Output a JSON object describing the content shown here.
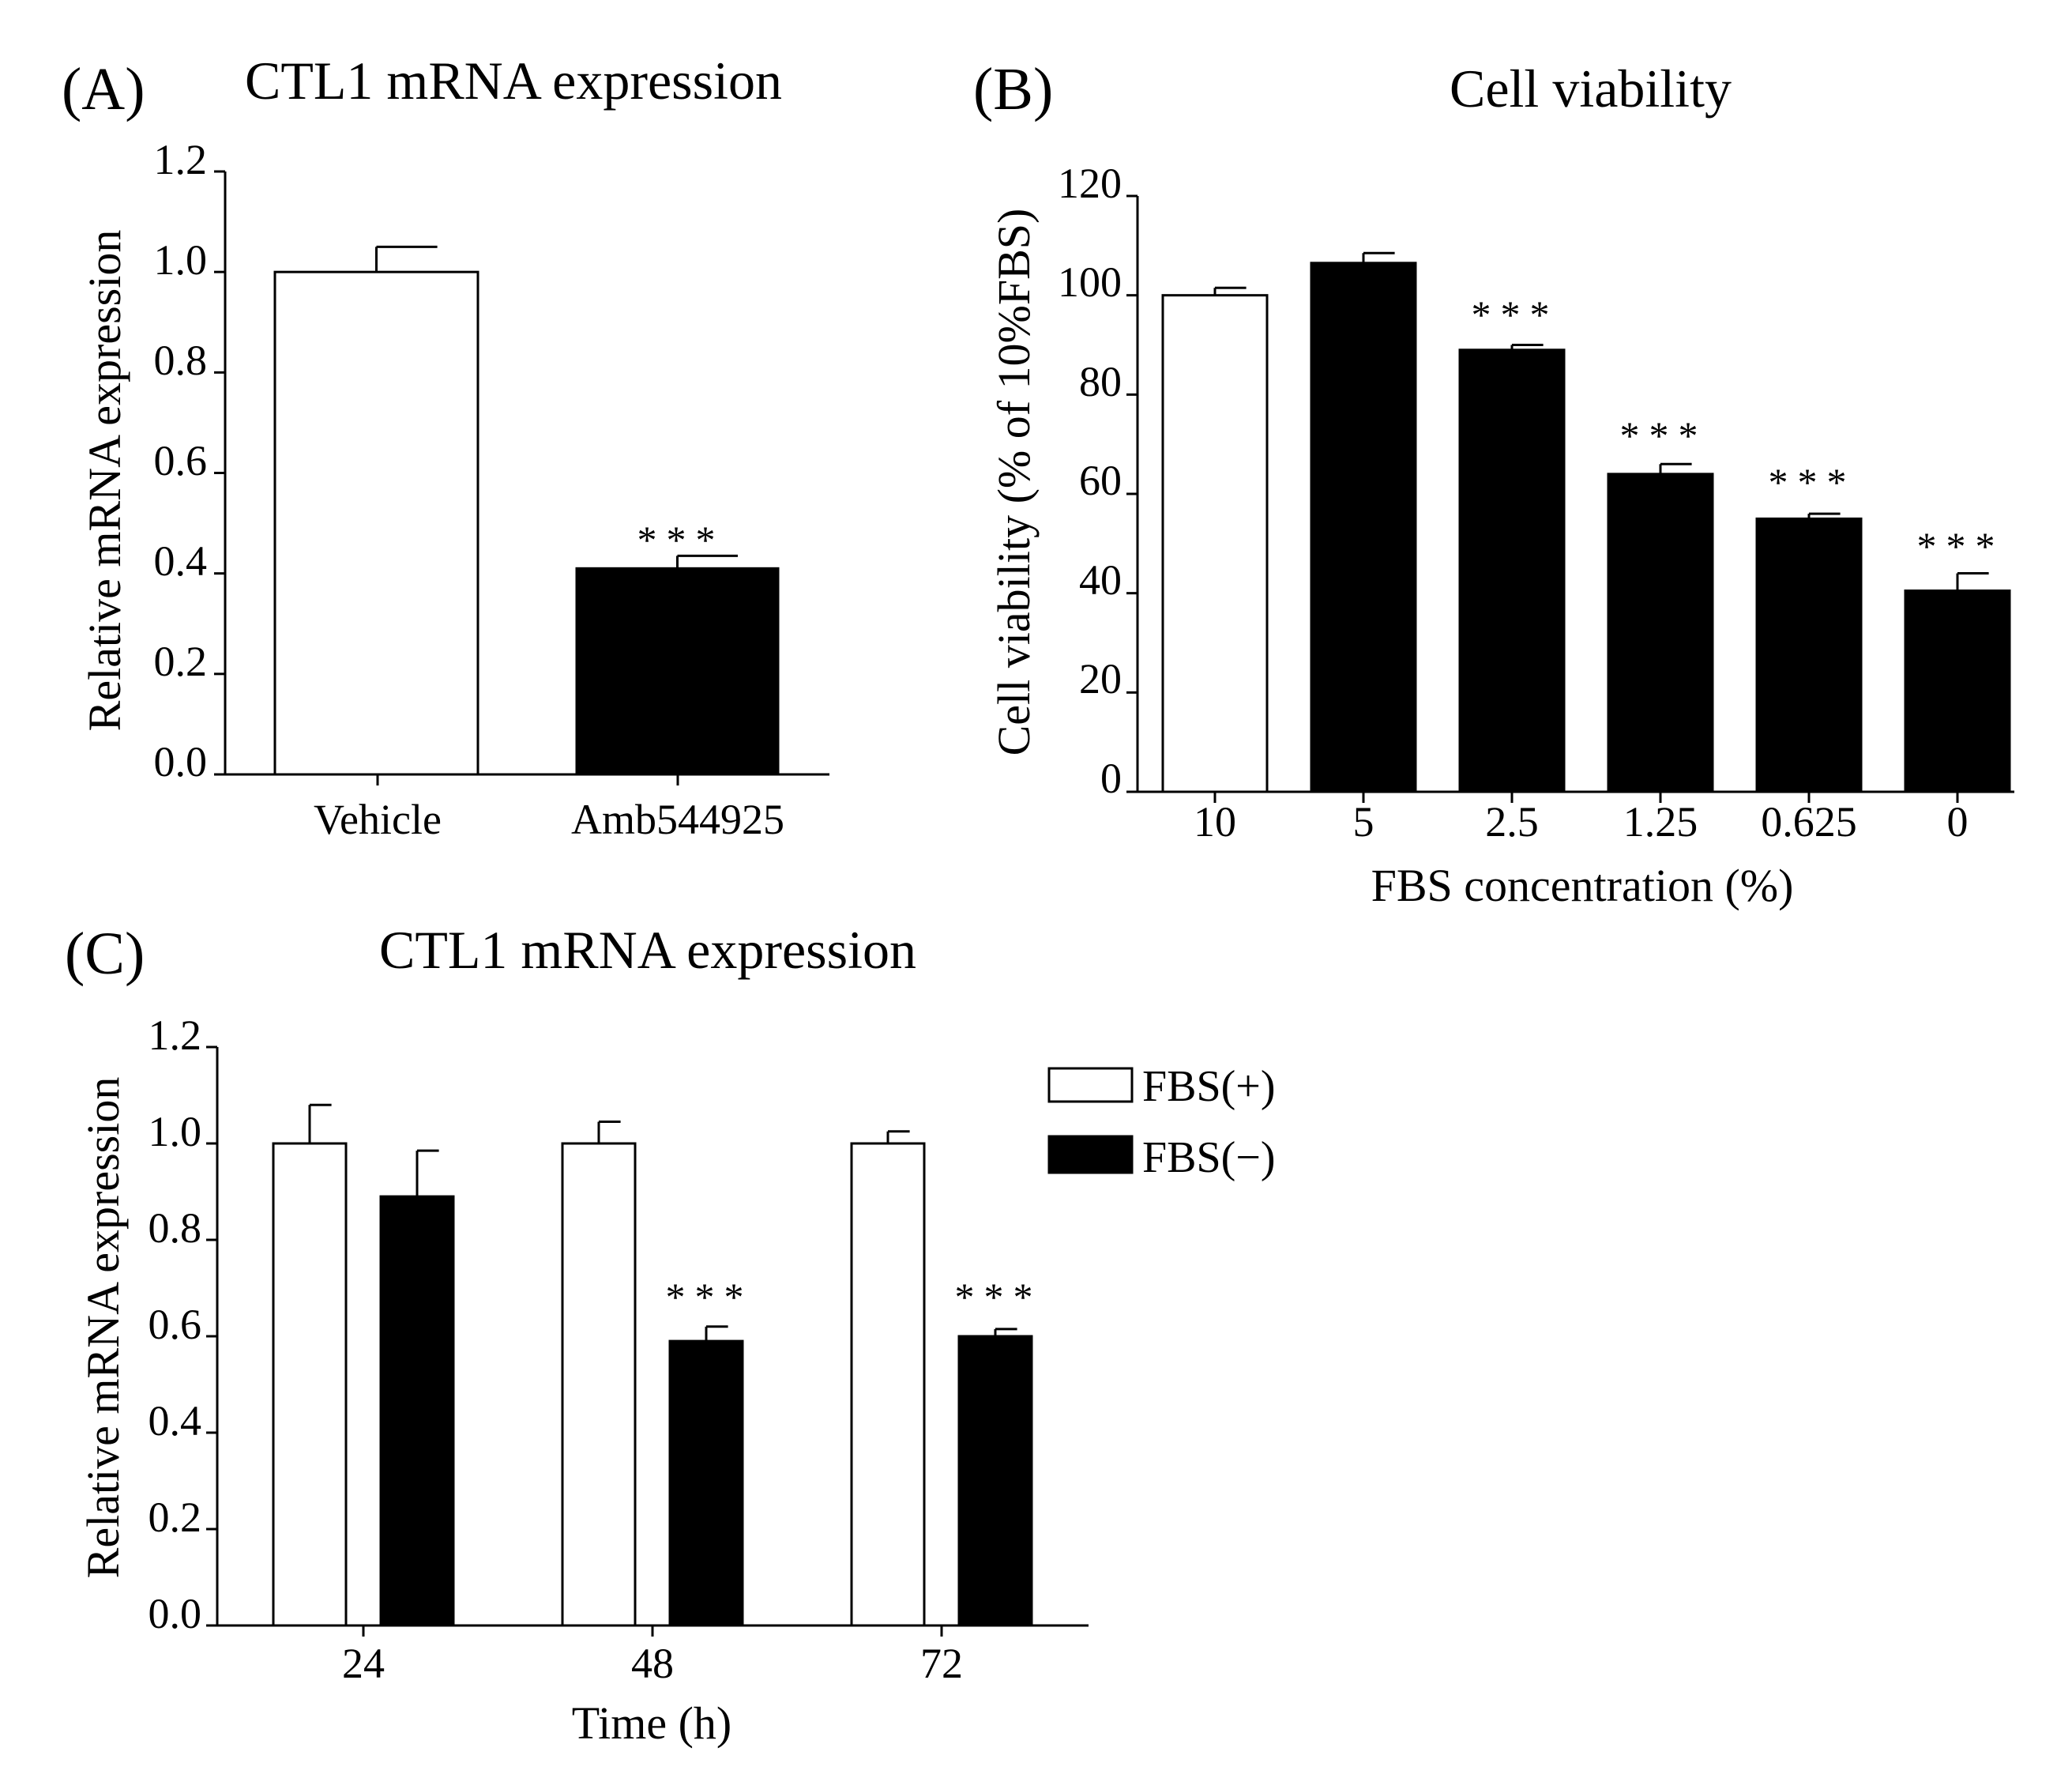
{
  "colors": {
    "white_bar": "#ffffff",
    "black_bar": "#000000",
    "ink": "#000000"
  },
  "chart_data": [
    {
      "id": "A",
      "panel_label": "(A)",
      "type": "bar",
      "title": "CTL1 mRNA expression",
      "xlabel": "",
      "ylabel": "Relative mRNA expression",
      "ylim": [
        0,
        1.2
      ],
      "yticks": [
        "0.0",
        "0.2",
        "0.4",
        "0.6",
        "0.8",
        "1.0",
        "1.2"
      ],
      "categories": [
        "Vehicle",
        "Amb544925"
      ],
      "values": [
        1.0,
        0.41
      ],
      "errors": [
        0.05,
        0.025
      ],
      "fills": [
        "white",
        "black"
      ],
      "significance": [
        "",
        "***"
      ]
    },
    {
      "id": "B",
      "panel_label": "(B)",
      "type": "bar",
      "title": "Cell viability",
      "xlabel": "FBS concentration (%)",
      "ylabel": "Cell viability (% of 10%FBS)",
      "ylim": [
        0,
        120
      ],
      "yticks": [
        "0",
        "20",
        "40",
        "60",
        "80",
        "100",
        "120"
      ],
      "categories": [
        "10",
        "5",
        "2.5",
        "1.25",
        "0.625",
        "0"
      ],
      "values": [
        100,
        106.5,
        89,
        64,
        55,
        40.5
      ],
      "errors": [
        1.5,
        2,
        1,
        2,
        1,
        3.5
      ],
      "fills": [
        "white",
        "black",
        "black",
        "black",
        "black",
        "black"
      ],
      "significance": [
        "",
        "",
        "***",
        "***",
        "***",
        "***"
      ]
    },
    {
      "id": "C",
      "panel_label": "(C)",
      "type": "bar",
      "title": "CTL1 mRNA expression",
      "xlabel": "Time (h)",
      "ylabel": "Relative mRNA expression",
      "ylim": [
        0,
        1.2
      ],
      "yticks": [
        "0.0",
        "0.2",
        "0.4",
        "0.6",
        "0.8",
        "1.0",
        "1.2"
      ],
      "categories": [
        "24",
        "48",
        "72"
      ],
      "series": [
        {
          "name": "FBS(+)",
          "fill": "white",
          "values": [
            1.0,
            1.0,
            1.0
          ],
          "errors": [
            0.08,
            0.045,
            0.025
          ],
          "significance": [
            "",
            "",
            ""
          ]
        },
        {
          "name": "FBS(−)",
          "fill": "black",
          "values": [
            0.89,
            0.59,
            0.6
          ],
          "errors": [
            0.095,
            0.03,
            0.015
          ],
          "significance": [
            "",
            "***",
            "***"
          ]
        }
      ],
      "legend": {
        "position": "right",
        "entries": [
          "FBS(+)",
          "FBS(−)"
        ]
      }
    }
  ]
}
